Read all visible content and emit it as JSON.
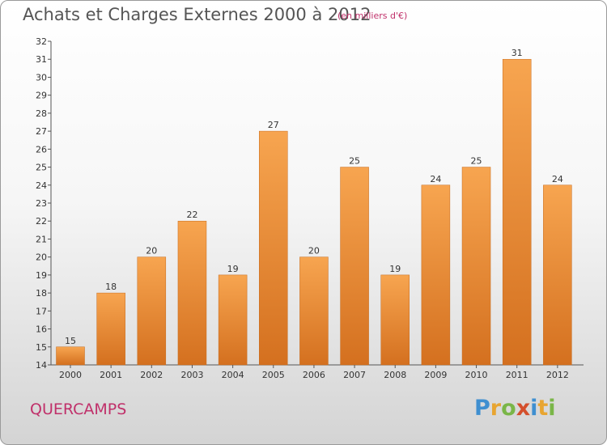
{
  "header": {
    "title": "Achats et Charges Externes 2000 à 2012",
    "unit": "(en milliers d'€)"
  },
  "footer": {
    "town": "QUERCAMPS",
    "brand_letters": [
      "P",
      "r",
      "o",
      "x",
      "i",
      "t",
      "i"
    ],
    "brand_colors": [
      "#3f8fd0",
      "#e8a531",
      "#7ab648",
      "#d44f2c",
      "#3f8fd0",
      "#e8a531",
      "#7ab648"
    ]
  },
  "colors": {
    "bar_light": "#f7a550",
    "bar_dark": "#d4701f",
    "text_accent": "#c0306a"
  },
  "chart_data": {
    "type": "bar",
    "categories": [
      "2000",
      "2001",
      "2002",
      "2003",
      "2004",
      "2005",
      "2006",
      "2007",
      "2008",
      "2009",
      "2010",
      "2011",
      "2012"
    ],
    "values": [
      15,
      18,
      20,
      22,
      19,
      27,
      20,
      25,
      19,
      24,
      25,
      31,
      24
    ],
    "value_labels": [
      "15",
      "18",
      "20",
      "22",
      "19",
      "27",
      "20",
      "25",
      "19",
      "24",
      "25",
      "31",
      "24"
    ],
    "ylim": [
      14,
      32
    ],
    "yticks": [
      "14",
      "15",
      "16",
      "17",
      "18",
      "19",
      "20",
      "21",
      "22",
      "23",
      "24",
      "25",
      "26",
      "27",
      "28",
      "29",
      "30",
      "31",
      "32"
    ],
    "grid": false
  }
}
